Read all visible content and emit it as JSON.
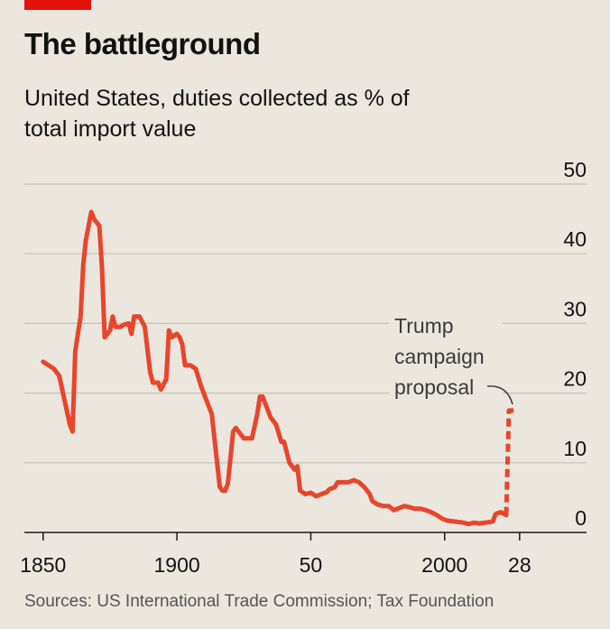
{
  "chart_data": {
    "type": "line",
    "title": "The battleground",
    "subtitle": "United States, duties collected as % of total import value",
    "source": "Sources: US International Trade Commission; Tax Foundation",
    "annotation": [
      "Trump",
      "campaign",
      "proposal"
    ],
    "xlim": [
      1843,
      2053
    ],
    "xticks": [
      1850,
      1900,
      {
        "value": 1950,
        "label": "50"
      },
      2000,
      {
        "value": 2028,
        "label": "28"
      }
    ],
    "ylim": [
      0,
      50
    ],
    "yticks": [
      0,
      10,
      20,
      30,
      40,
      50
    ],
    "grid": true,
    "series": [
      {
        "color": "#e8452c",
        "style": "solid",
        "x": [
          1850,
          1852,
          1854,
          1856,
          1858,
          1860,
          1861,
          1862,
          1864,
          1865,
          1866,
          1868,
          1869,
          1871,
          1872,
          1873,
          1875,
          1876,
          1877,
          1879,
          1880,
          1882,
          1883,
          1884,
          1886,
          1888,
          1890,
          1891,
          1893,
          1894,
          1896,
          1897,
          1898,
          1900,
          1901,
          1902,
          1903,
          1905,
          1907,
          1909,
          1911,
          1913,
          1915,
          1916,
          1917,
          1918,
          1919,
          1921,
          1922,
          1923,
          1925,
          1927,
          1928,
          1930,
          1931,
          1932,
          1934,
          1935,
          1937,
          1939,
          1940,
          1942,
          1944,
          1945,
          1946,
          1948,
          1950,
          1952,
          1954,
          1956,
          1957,
          1959,
          1960,
          1962,
          1964,
          1966,
          1968,
          1970,
          1972,
          1973,
          1975,
          1977,
          1979,
          1981,
          1983,
          1985,
          1987,
          1989,
          1991,
          1993,
          1995,
          1997,
          1999,
          2001,
          2003,
          2005,
          2007,
          2009,
          2011,
          2013,
          2015,
          2017,
          2018,
          2019,
          2020,
          2021,
          2022,
          2023
        ],
        "values": [
          24.5,
          24,
          23.5,
          22.5,
          19,
          15.5,
          14.5,
          26,
          31,
          38.5,
          42,
          46,
          45,
          44,
          38,
          28,
          29,
          31,
          29.5,
          29.5,
          29.8,
          30,
          28.5,
          31,
          31,
          29.5,
          23,
          21.5,
          21.5,
          20.5,
          22,
          29,
          28,
          28.5,
          28,
          27,
          24,
          24,
          23.5,
          21,
          19,
          17,
          10,
          6.5,
          6,
          6,
          7,
          14.5,
          15,
          14.5,
          13.5,
          13.5,
          13.5,
          17,
          19.5,
          19.5,
          17.5,
          16.5,
          15.5,
          13,
          13,
          10,
          9,
          9.5,
          6,
          5.5,
          5.7,
          5.2,
          5.5,
          5.8,
          6.2,
          6.5,
          7.2,
          7.2,
          7.2,
          7.5,
          7.2,
          6.5,
          5.5,
          4.5,
          4,
          3.8,
          3.8,
          3.2,
          3.5,
          3.8,
          3.6,
          3.4,
          3.4,
          3.2,
          2.9,
          2.5,
          2,
          1.7,
          1.6,
          1.5,
          1.4,
          1.2,
          1.4,
          1.3,
          1.4,
          1.5,
          1.6,
          2.6,
          2.8,
          2.9,
          2.7,
          2.5
        ]
      },
      {
        "color": "#e8452c",
        "style": "dashed",
        "x": [
          2023,
          2024,
          2026
        ],
        "values": [
          2.5,
          17.5,
          17.5
        ]
      }
    ]
  }
}
